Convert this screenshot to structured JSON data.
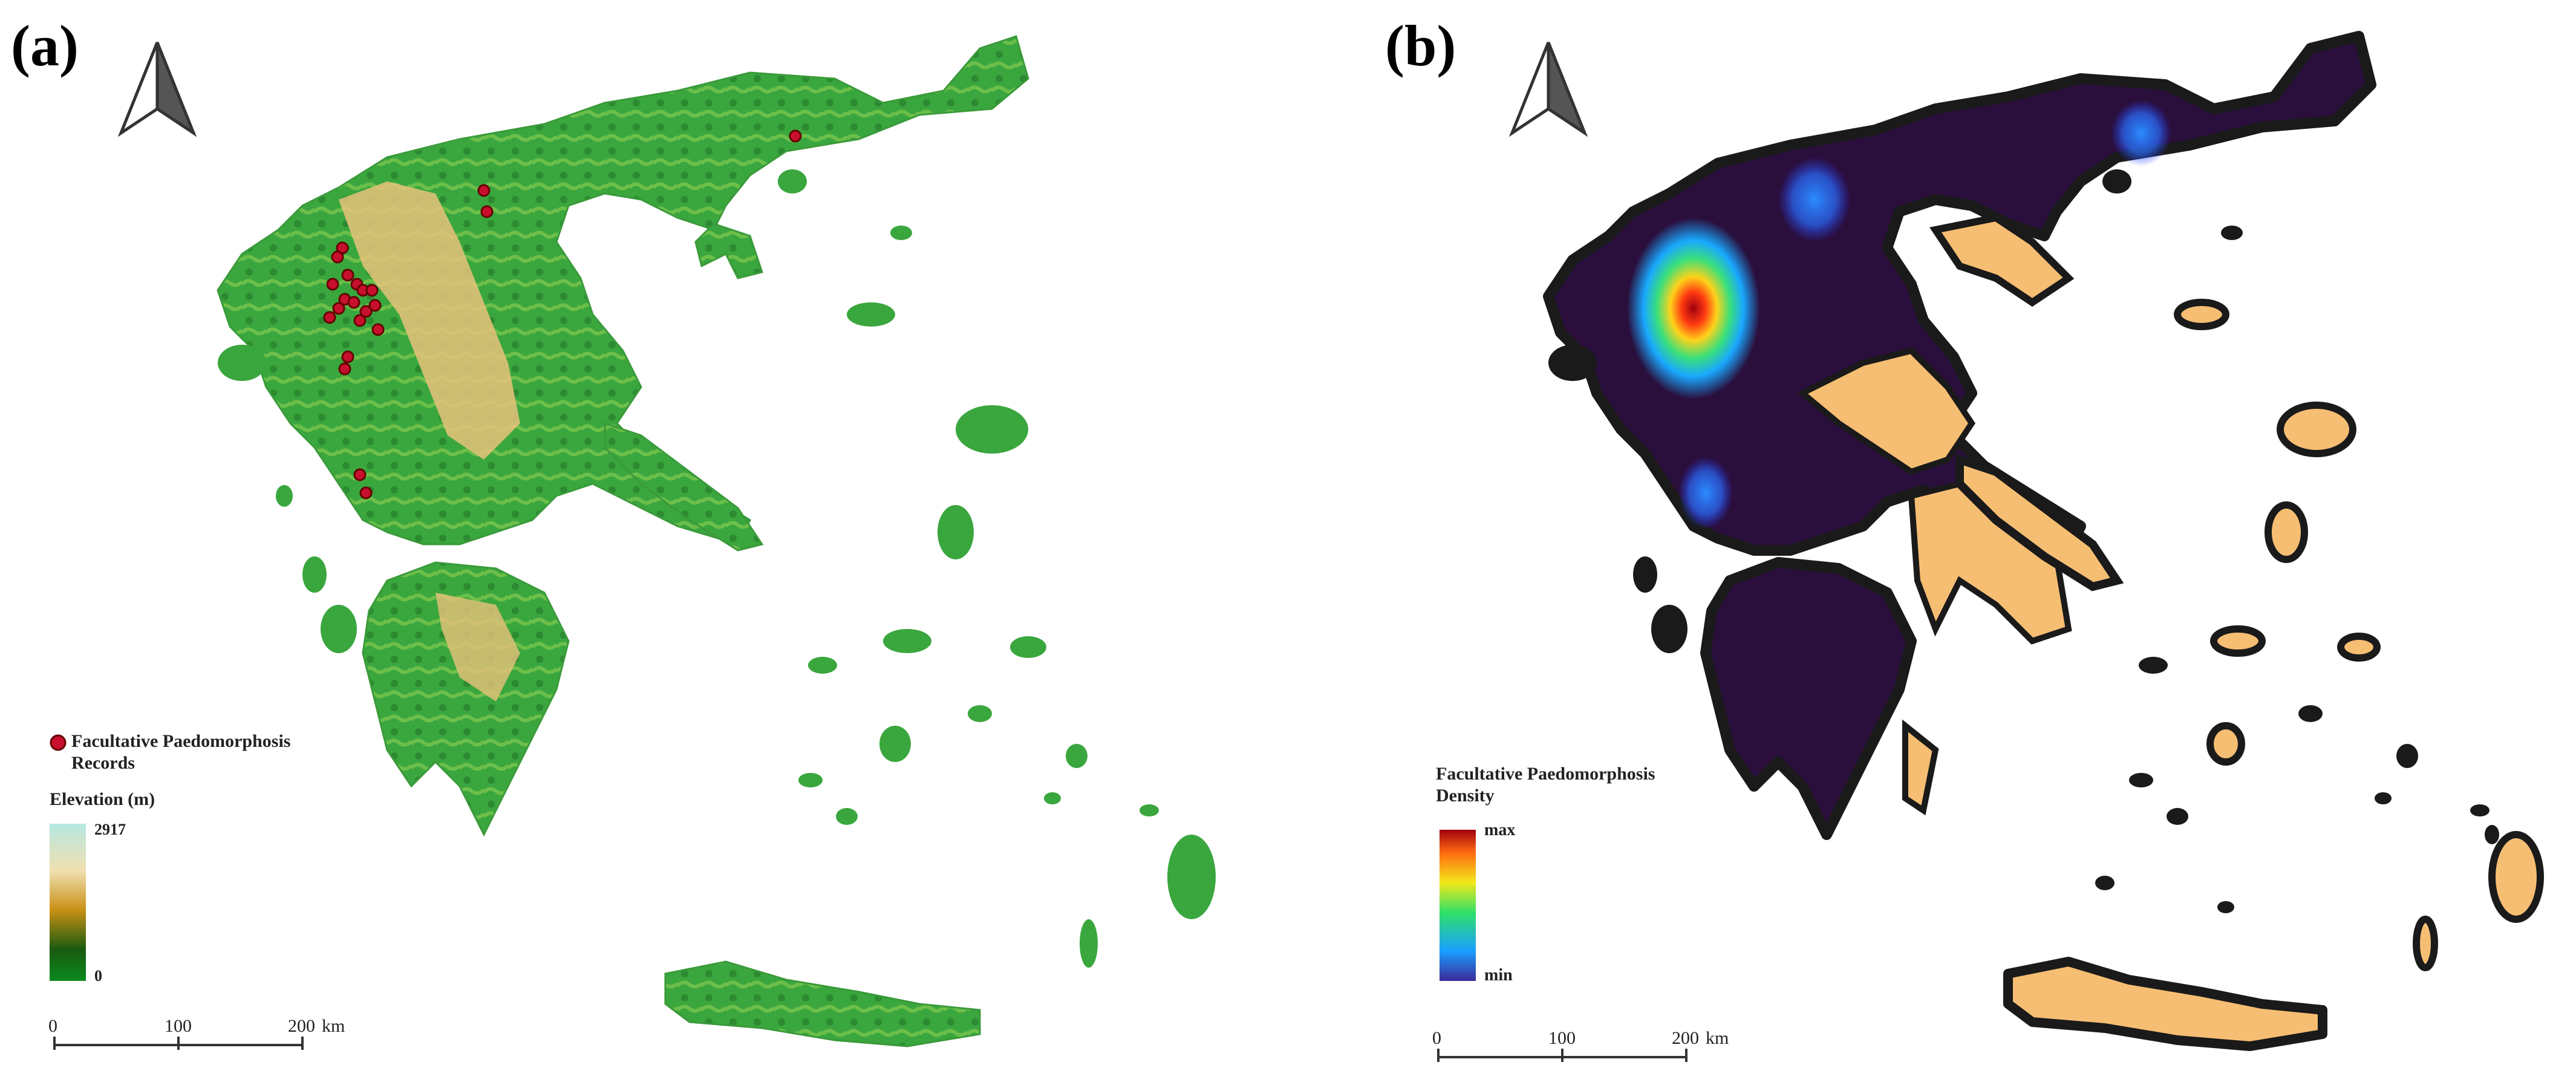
{
  "panels": {
    "a": {
      "label": "(a)",
      "legend": {
        "points_label": "Facultative Paedomorphosis Records",
        "elevation_title": "Elevation (m)",
        "elevation_max": "2917",
        "elevation_min": "0"
      },
      "scalebar": {
        "ticks": [
          "0",
          "100",
          "200"
        ],
        "unit": "km"
      }
    },
    "b": {
      "label": "(b)",
      "legend": {
        "density_title": "Facultative Paedomorphosis Density",
        "density_max": "max",
        "density_min": "min"
      },
      "scalebar": {
        "ticks": [
          "0",
          "100",
          "200"
        ],
        "unit": "km"
      }
    }
  },
  "colors": {
    "record_point": "#c8102e",
    "lowland": "#2e9e3a",
    "highland": "#e8c27a",
    "density_base": "#2a0f3d",
    "outside_range": "#f6be73",
    "coast_outline": "#1a1a1a"
  }
}
